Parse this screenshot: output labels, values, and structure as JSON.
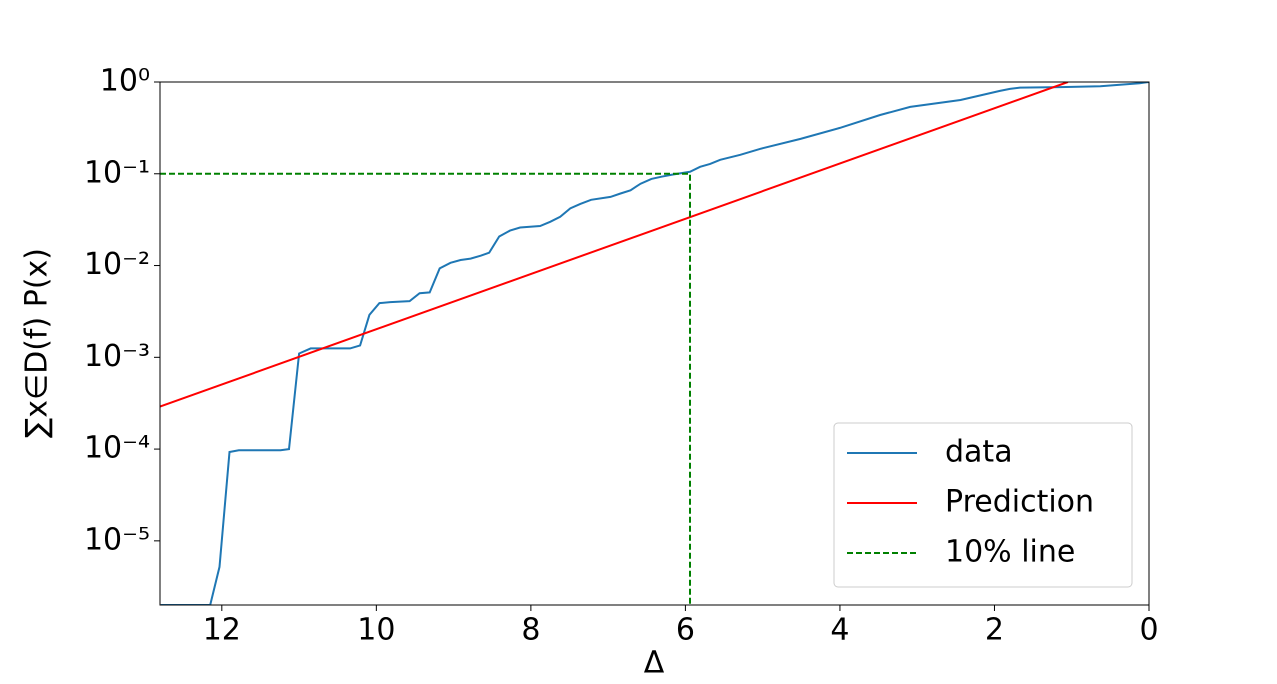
{
  "chart_data": {
    "type": "line",
    "xlabel": "Δ",
    "ylabel": "∑x∈D(f) P(x)",
    "xlim": [
      12.8,
      0
    ],
    "ylim": [
      2e-06,
      1
    ],
    "yscale": "log",
    "xticks": [
      12,
      10,
      8,
      6,
      4,
      2,
      0
    ],
    "yticks": [
      {
        "value": 1,
        "label": "10⁰"
      },
      {
        "value": 0.1,
        "label": "10⁻¹"
      },
      {
        "value": 0.01,
        "label": "10⁻²"
      },
      {
        "value": 0.001,
        "label": "10⁻³"
      },
      {
        "value": 0.0001,
        "label": "10⁻⁴"
      },
      {
        "value": 1e-05,
        "label": "10⁻⁵"
      }
    ],
    "legend": "lower right",
    "series": [
      {
        "name": "data",
        "color": "#1f77b4",
        "dash": "solid",
        "x": [
          12.79,
          12.15,
          12.03,
          11.9,
          11.78,
          11.24,
          11.13,
          11.0,
          10.85,
          10.72,
          10.34,
          10.21,
          10.09,
          9.96,
          9.82,
          9.57,
          9.44,
          9.31,
          9.18,
          9.04,
          8.91,
          8.78,
          8.65,
          8.54,
          8.41,
          8.27,
          8.14,
          7.88,
          7.75,
          7.62,
          7.49,
          7.36,
          7.22,
          6.97,
          6.84,
          6.71,
          6.58,
          6.44,
          6.31,
          6.17,
          5.94,
          5.81,
          5.68,
          5.55,
          5.29,
          5.03,
          4.51,
          4.0,
          3.48,
          3.09,
          2.44,
          1.93,
          1.8,
          1.67,
          1.15,
          0.63,
          0.12,
          0
        ],
        "values": [
          2e-06,
          2e-06,
          5.2e-06,
          9.3e-05,
          9.7e-05,
          9.7e-05,
          0.0001,
          0.0011,
          0.00125,
          0.00125,
          0.00125,
          0.00135,
          0.0029,
          0.0039,
          0.004,
          0.0041,
          0.005,
          0.0051,
          0.0093,
          0.0107,
          0.0115,
          0.0119,
          0.0128,
          0.0138,
          0.0207,
          0.024,
          0.026,
          0.027,
          0.03,
          0.034,
          0.042,
          0.047,
          0.052,
          0.056,
          0.061,
          0.066,
          0.078,
          0.088,
          0.093,
          0.098,
          0.105,
          0.119,
          0.128,
          0.142,
          0.161,
          0.187,
          0.24,
          0.316,
          0.437,
          0.535,
          0.637,
          0.8,
          0.84,
          0.87,
          0.88,
          0.9,
          0.97,
          1.0
        ]
      },
      {
        "name": "Prediction",
        "color": "#ff0000",
        "dash": "solid",
        "x": [
          12.8,
          1.05
        ],
        "values": [
          0.00029,
          1
        ]
      },
      {
        "name": "10% line",
        "color": "#008000",
        "dash": "dashed",
        "x": [
          12.8,
          5.94,
          5.94
        ],
        "values": [
          0.1,
          0.1,
          2e-06
        ]
      }
    ]
  }
}
